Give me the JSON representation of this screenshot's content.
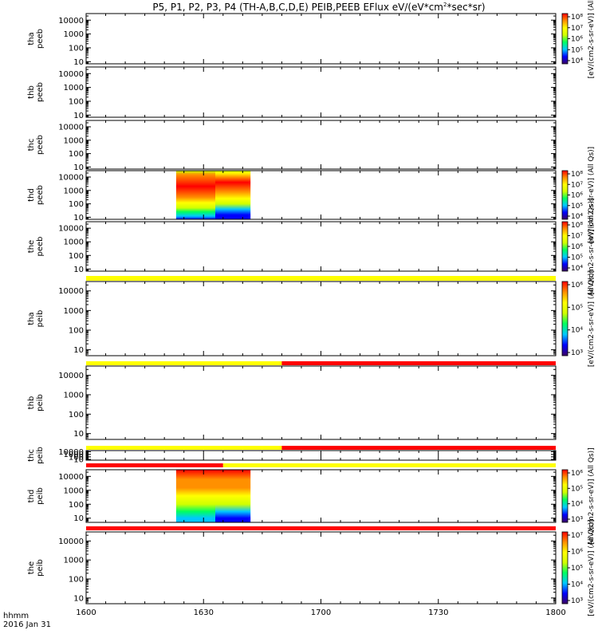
{
  "title": {
    "pre": "P5, P1, P2, P3, P4 (TH-A,B,C,D,E) PEIB,PEEB EFlux eV/(eV*cm",
    "sup1": "2",
    "mid": "*sec*sr)"
  },
  "footer": {
    "units_line": "hhmm",
    "date_line": "2016 Jan 31"
  },
  "colors": {
    "flag_yellow": "#ffff00",
    "flag_red": "#ff0000",
    "colormap": [
      "#3c0064",
      "#0000ff",
      "#00c8ff",
      "#00ff60",
      "#d0ff00",
      "#ffff00",
      "#ff9000",
      "#ff0000"
    ]
  },
  "chart_data": {
    "type": "heatmap",
    "x_axis": {
      "range": [
        "1600",
        "1800"
      ],
      "tick_labels": [
        "1600",
        "1630",
        "1700",
        "1730",
        "1800"
      ],
      "scale": "time hhmm"
    },
    "panels": [
      {
        "id": "tha-peeb",
        "ylabel": [
          "tha",
          "peeb"
        ],
        "yscale": "log",
        "ylim": [
          7,
          30000
        ],
        "yticks": [
          "10000",
          "1000",
          "100",
          "10"
        ],
        "data": []
      },
      {
        "id": "thb-peeb",
        "ylabel": [
          "thb",
          "peeb"
        ],
        "yscale": "log",
        "ylim": [
          7,
          30000
        ],
        "yticks": [
          "10000",
          "1000",
          "100",
          "10"
        ],
        "data": []
      },
      {
        "id": "thc-peeb",
        "ylabel": [
          "thc",
          "peeb"
        ],
        "yscale": "log",
        "ylim": [
          7,
          30000
        ],
        "yticks": [
          "10000",
          "1000",
          "100",
          "10"
        ],
        "data": []
      },
      {
        "id": "thd-peeb",
        "ylabel": [
          "thd",
          "peeb"
        ],
        "yscale": "log",
        "ylim": [
          7,
          30000
        ],
        "yticks": [
          "10000",
          "1000",
          "100",
          "10"
        ],
        "data": [
          {
            "t_start": "1623",
            "t_end": "1633",
            "profile": [
              [
                7,
                0.18
              ],
              [
                12,
                0.25
              ],
              [
                25,
                0.4
              ],
              [
                50,
                0.55
              ],
              [
                120,
                0.75
              ],
              [
                300,
                0.9
              ],
              [
                2000,
                0.98
              ],
              [
                15000,
                0.8
              ],
              [
                30000,
                0.6
              ]
            ]
          },
          {
            "t_start": "1633",
            "t_end": "1642",
            "profile": [
              [
                7,
                0.12
              ],
              [
                15,
                0.2
              ],
              [
                40,
                0.35
              ],
              [
                100,
                0.52
              ],
              [
                250,
                0.72
              ],
              [
                800,
                0.9
              ],
              [
                4000,
                0.95
              ],
              [
                20000,
                0.7
              ],
              [
                30000,
                0.5
              ]
            ]
          }
        ]
      },
      {
        "id": "the-peeb",
        "ylabel": [
          "the",
          "peeb"
        ],
        "yscale": "log",
        "ylim": [
          7,
          30000
        ],
        "yticks": [
          "10000",
          "1000",
          "100",
          "10"
        ],
        "data": []
      },
      {
        "id": "tha-peib",
        "ylabel": [
          "tha",
          "peib"
        ],
        "yscale": "log",
        "ylim": [
          5,
          30000
        ],
        "yticks": [
          "10000",
          "1000",
          "100",
          "10"
        ],
        "data": []
      },
      {
        "id": "thb-peib",
        "ylabel": [
          "thb",
          "peib"
        ],
        "yscale": "log",
        "ylim": [
          5,
          30000
        ],
        "yticks": [
          "10000",
          "1000",
          "100",
          "10"
        ],
        "data": []
      },
      {
        "id": "thc-peib",
        "ylabel": [
          "thc",
          "peib"
        ],
        "yscale": "log",
        "ylim": [
          5,
          30000
        ],
        "yticks": [
          "10000",
          "1000",
          "100",
          "10"
        ],
        "data": []
      },
      {
        "id": "thd-peib",
        "ylabel": [
          "thd",
          "peib"
        ],
        "yscale": "log",
        "ylim": [
          5,
          30000
        ],
        "yticks": [
          "10000",
          "1000",
          "100",
          "10"
        ],
        "data": [
          {
            "t_start": "1623",
            "t_end": "1633",
            "profile": [
              [
                5,
                0.25
              ],
              [
                10,
                0.3
              ],
              [
                30,
                0.45
              ],
              [
                100,
                0.6
              ],
              [
                400,
                0.72
              ],
              [
                1500,
                0.82
              ],
              [
                6000,
                0.92
              ],
              [
                30000,
                0.98
              ]
            ]
          },
          {
            "t_start": "1633",
            "t_end": "1642",
            "profile": [
              [
                5,
                0.1
              ],
              [
                10,
                0.18
              ],
              [
                30,
                0.35
              ],
              [
                100,
                0.55
              ],
              [
                400,
                0.7
              ],
              [
                1500,
                0.82
              ],
              [
                6000,
                0.92
              ],
              [
                30000,
                0.98
              ]
            ]
          }
        ]
      },
      {
        "id": "the-peib",
        "ylabel": [
          "the",
          "peib"
        ],
        "yscale": "log",
        "ylim": [
          5,
          30000
        ],
        "yticks": [
          "10000",
          "1000",
          "100",
          "10"
        ],
        "data": []
      }
    ],
    "flag_bars": [
      {
        "after_panel": "the-peeb",
        "segments": [
          {
            "from": "1600",
            "to": "1800",
            "color": "yellow"
          }
        ]
      },
      {
        "after_panel": "tha-peib",
        "segments": [
          {
            "from": "1600",
            "to": "1650",
            "color": "yellow"
          },
          {
            "from": "1650",
            "to": "1800",
            "color": "red"
          }
        ]
      },
      {
        "after_panel": "thb-peib",
        "segments": [
          {
            "from": "1600",
            "to": "1650",
            "color": "yellow"
          },
          {
            "from": "1650",
            "to": "1800",
            "color": "red"
          }
        ]
      },
      {
        "after_panel": "thc-peib",
        "segments": [
          {
            "from": "1600",
            "to": "1635",
            "color": "red"
          },
          {
            "from": "1635",
            "to": "1800",
            "color": "yellow"
          }
        ]
      },
      {
        "after_panel": "thd-peib",
        "segments": [
          {
            "from": "1600",
            "to": "1800",
            "color": "red"
          }
        ]
      }
    ],
    "colorbars": [
      {
        "attached_panel": "tha-peeb",
        "tick_labels": [
          "10⁸",
          "10⁷",
          "10⁶",
          "10⁵",
          "10⁴"
        ],
        "label": "[eV/(cm2-s-sr-eV)] (All"
      },
      {
        "attached_panel": "thd-peeb",
        "tick_labels": [
          "10⁸",
          "10⁷",
          "10⁶",
          "10⁵",
          "10⁴"
        ],
        "label": "[eV/(cm2-s-sr-eV)] (All Qs)]"
      },
      {
        "attached_panel": "the-peeb",
        "tick_labels": [
          "10⁸",
          "10⁷",
          "10⁶",
          "10⁵",
          "10⁴"
        ],
        "label": "[eV/(cm2-s-sr-eV)] (All Qs)]"
      },
      {
        "attached_panel": "tha-peib",
        "tick_labels": [
          "10⁶",
          "10⁵",
          "10⁴",
          "10³"
        ],
        "label": "[eV/(cm2-s-sr-eV)] (All Qs)]"
      },
      {
        "attached_panel": "thd-peib",
        "tick_labels": [
          "10⁶",
          "10⁵",
          "10⁴",
          "10³"
        ],
        "label": "[eV/(cm2-s-sr-eV)] (All Qs)]"
      },
      {
        "attached_panel": "the-peib",
        "tick_labels": [
          "10⁷",
          "10⁶",
          "10⁵",
          "10⁴",
          "10³"
        ],
        "label": "[eV/(cm2-s-sr-eV)] (All Qs)]"
      }
    ]
  }
}
